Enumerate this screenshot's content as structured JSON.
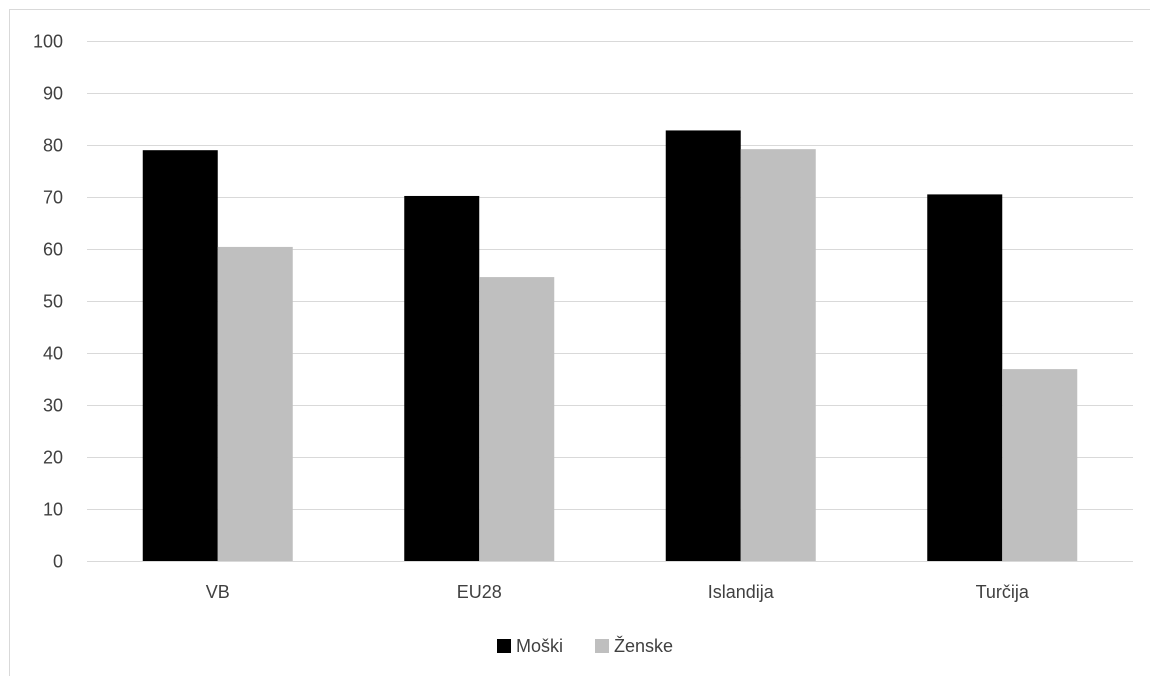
{
  "chart_data": {
    "type": "bar",
    "categories": [
      "VB",
      "EU28",
      "Islandija",
      "Turčija"
    ],
    "series": [
      {
        "name": "Moški",
        "color": "#000000",
        "values": [
          79,
          70.2,
          82.8,
          70.5
        ]
      },
      {
        "name": "Ženske",
        "color": "#bfbfbf",
        "values": [
          60.4,
          54.6,
          79.2,
          36.9
        ]
      }
    ],
    "ylim": [
      0,
      100
    ],
    "yticks": [
      0,
      10,
      20,
      30,
      40,
      50,
      60,
      70,
      80,
      90,
      100
    ],
    "grid": true,
    "legend_position": "bottom",
    "title": "",
    "xlabel": "",
    "ylabel": ""
  }
}
